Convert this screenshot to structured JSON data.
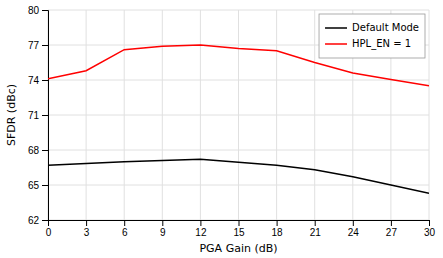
{
  "chart_data": {
    "type": "line",
    "xlabel": "PGA Gain (dB)",
    "ylabel": "SFDR (dBc)",
    "x": [
      0,
      3,
      6,
      9,
      12,
      15,
      18,
      21,
      24,
      27,
      30
    ],
    "series": [
      {
        "name": "Default Mode",
        "color": "#000000",
        "values": [
          66.7,
          66.85,
          67.0,
          67.1,
          67.2,
          66.95,
          66.7,
          66.3,
          65.7,
          65.0,
          64.3
        ]
      },
      {
        "name": "HPL_EN = 1",
        "color": "#ff0000",
        "values": [
          74.1,
          74.8,
          76.6,
          76.9,
          77.0,
          76.7,
          76.5,
          75.5,
          74.6,
          74.05,
          73.5
        ]
      }
    ],
    "xlim": [
      0,
      30
    ],
    "ylim": [
      62,
      80
    ],
    "xticks": [
      0,
      3,
      6,
      9,
      12,
      15,
      18,
      21,
      24,
      27,
      30
    ],
    "yticks": [
      62,
      65,
      68,
      71,
      74,
      77,
      80
    ],
    "grid": true,
    "legend": "upper-right"
  }
}
